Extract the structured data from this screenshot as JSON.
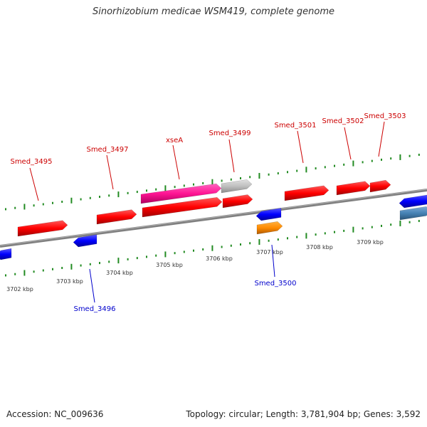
{
  "title": "Sinorhizobium medicae WSM419, complete genome",
  "footer": {
    "accession": "Accession: NC_009636",
    "summary": "Topology: circular; Length: 3,781,904 bp; Genes: 3,592"
  },
  "colors": {
    "forward_gene": "#ff0000",
    "reverse_gene": "#0000ff",
    "highlight_gene": "#ff1493",
    "rna_gene": "#ff8c00",
    "steelblue_gene": "#4682b4",
    "gray_gene": "#bfbfbf",
    "backbone": "#808080",
    "tick": "#228b22",
    "forward_label": "#cc0000",
    "reverse_label": "#0000cc"
  },
  "scale_ticks": [
    "3702 kbp",
    "3703 kbp",
    "3704 kbp",
    "3705 kbp",
    "3706 kbp",
    "3707 kbp",
    "3708 kbp",
    "3709 kbp"
  ],
  "gene_labels": [
    {
      "name": "Smed_3495",
      "strand": "forward"
    },
    {
      "name": "Smed_3497",
      "strand": "forward"
    },
    {
      "name": "xseA",
      "strand": "forward"
    },
    {
      "name": "Smed_3499",
      "strand": "forward"
    },
    {
      "name": "Smed_3501",
      "strand": "forward"
    },
    {
      "name": "Smed_3502",
      "strand": "forward"
    },
    {
      "name": "Smed_3503",
      "strand": "forward"
    },
    {
      "name": "Smed_3496",
      "strand": "reverse"
    },
    {
      "name": "Smed_3500",
      "strand": "reverse"
    }
  ]
}
